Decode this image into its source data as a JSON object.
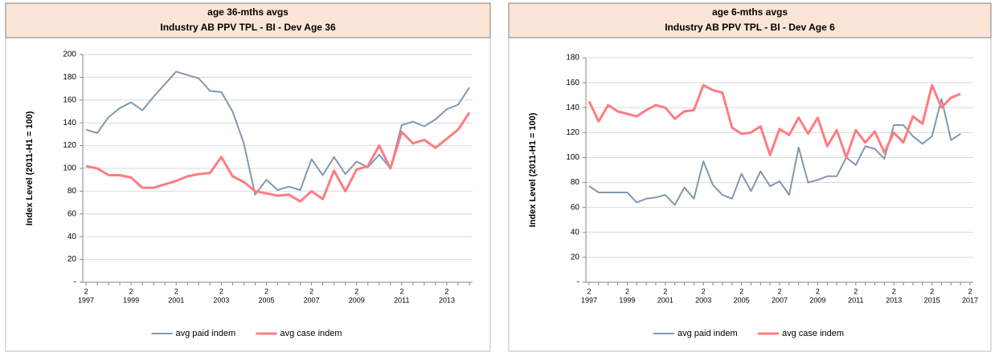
{
  "chart_data": [
    {
      "type": "line",
      "title": "age 36-mths avgs",
      "subtitle": "Industry AB PPV TPL - BI - Dev Age 36",
      "y_label": "Index Level (2011-H1 = 100)",
      "categories": [
        [
          "2",
          "1997"
        ],
        null,
        null,
        null,
        [
          "2",
          "1999"
        ],
        null,
        null,
        null,
        [
          "2",
          "2001"
        ],
        null,
        null,
        null,
        [
          "2",
          "2003"
        ],
        null,
        null,
        null,
        [
          "2",
          "2005"
        ],
        null,
        null,
        null,
        [
          "2",
          "2007"
        ],
        null,
        null,
        null,
        [
          "2",
          "2009"
        ],
        null,
        null,
        null,
        [
          "2",
          "2011"
        ],
        null,
        null,
        null,
        [
          "2",
          "2013"
        ],
        null,
        null
      ],
      "ylim": [
        0,
        200
      ],
      "yticks": [
        {
          "value": 0,
          "label": "-"
        },
        20,
        40,
        60,
        80,
        100,
        120,
        140,
        160,
        180,
        200
      ],
      "grid": true,
      "legend": "bottom",
      "series": [
        {
          "name": "avg paid indem",
          "color": "#8497b0",
          "values": [
            134,
            131,
            145,
            153,
            158,
            151,
            163,
            174,
            185,
            182,
            179,
            168,
            167,
            150,
            122,
            77,
            90,
            81,
            84,
            81,
            108,
            94,
            110,
            95,
            106,
            101,
            112,
            100,
            138,
            141,
            137,
            143,
            152,
            156,
            171
          ]
        },
        {
          "name": "avg case indem",
          "color": "#ff7c80",
          "values": [
            102,
            100,
            94,
            94,
            92,
            83,
            83,
            86,
            89,
            93,
            95,
            96,
            110,
            93,
            88,
            80,
            78,
            76,
            77,
            71,
            80,
            73,
            98,
            80,
            99,
            102,
            120,
            100,
            132,
            122,
            125,
            118,
            126,
            134,
            149
          ]
        }
      ]
    },
    {
      "type": "line",
      "title": "age 6-mths avgs",
      "subtitle": "Industry AB PPV TPL - BI - Dev Age 6",
      "y_label": "Index Level (2011-H1 = 100)",
      "categories": [
        [
          "2",
          "1997"
        ],
        null,
        null,
        null,
        [
          "2",
          "1999"
        ],
        null,
        null,
        null,
        [
          "2",
          "2001"
        ],
        null,
        null,
        null,
        [
          "2",
          "2003"
        ],
        null,
        null,
        null,
        [
          "2",
          "2005"
        ],
        null,
        null,
        null,
        [
          "2",
          "2007"
        ],
        null,
        null,
        null,
        [
          "2",
          "2009"
        ],
        null,
        null,
        null,
        [
          "2",
          "2011"
        ],
        null,
        null,
        null,
        [
          "2",
          "2013"
        ],
        null,
        null,
        null,
        [
          "2",
          "2015"
        ],
        null,
        null,
        null,
        [
          "2",
          "2017"
        ]
      ],
      "ylim": [
        0,
        180
      ],
      "yticks": [
        {
          "value": 0,
          "label": "-"
        },
        20,
        40,
        60,
        80,
        100,
        120,
        140,
        160,
        180
      ],
      "grid": true,
      "legend": "bottom",
      "series": [
        {
          "name": "avg paid indem",
          "color": "#8497b0",
          "values": [
            77,
            72,
            72,
            72,
            72,
            64,
            67,
            68,
            70,
            62,
            76,
            67,
            97,
            78,
            70,
            67,
            87,
            73,
            89,
            77,
            81,
            70,
            108,
            80,
            82,
            85,
            85,
            100,
            94,
            109,
            107,
            99,
            126,
            126,
            117,
            111,
            117,
            147,
            114,
            119,
            null
          ]
        },
        {
          "name": "avg case indem",
          "color": "#ff7c80",
          "values": [
            145,
            129,
            142,
            137,
            135,
            133,
            138,
            142,
            140,
            131,
            137,
            138,
            158,
            154,
            152,
            124,
            119,
            120,
            125,
            102,
            123,
            118,
            132,
            119,
            132,
            109,
            122,
            100,
            122,
            112,
            121,
            104,
            120,
            112,
            133,
            127,
            158,
            140,
            148,
            151,
            null
          ]
        }
      ]
    }
  ]
}
